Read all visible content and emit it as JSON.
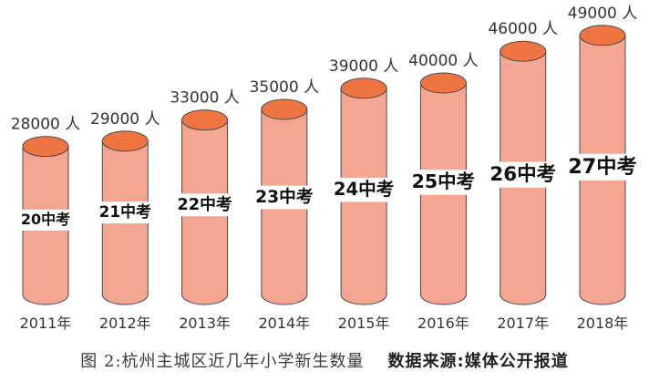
{
  "chart_data": {
    "type": "bar",
    "categories": [
      "2011年",
      "2012年",
      "2013年",
      "2014年",
      "2015年",
      "2016年",
      "2017年",
      "2018年"
    ],
    "values": [
      28000,
      29000,
      33000,
      35000,
      39000,
      40000,
      46000,
      49000
    ],
    "value_labels": [
      "28000 人",
      "29000 人",
      "33000 人",
      "35000 人",
      "39000 人",
      "40000 人",
      "46000 人",
      "49000 人"
    ],
    "bar_labels": [
      "20中考",
      "21中考",
      "22中考",
      "23中考",
      "24中考",
      "25中考",
      "26中考",
      "27中考"
    ],
    "ylim": [
      0,
      52000
    ],
    "grid": false,
    "colors": {
      "cylinder_body": "#f4a693",
      "cylinder_top": "#ee7441",
      "outline": "#4a4a4a",
      "label_bg": "#ffffff"
    }
  },
  "caption": {
    "title": "图 2:杭州主城区近几年小学新生数量",
    "source": "数据来源:媒体公开报道"
  }
}
